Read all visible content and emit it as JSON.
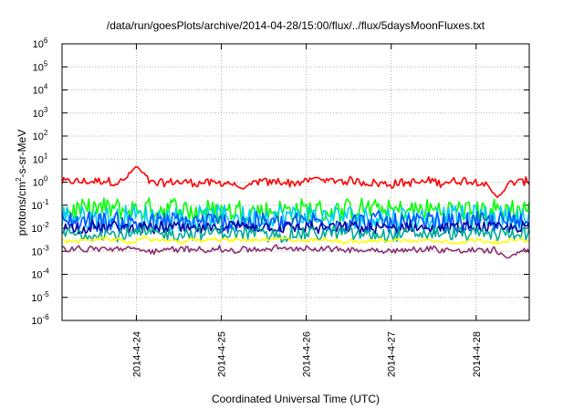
{
  "chart_data": {
    "type": "line",
    "title": "/data/run/goesPlots/archive/2014-04-28/15:00/flux/../flux/5daysMoonFluxes.txt",
    "xlabel": "Coordinated Universal Time (UTC)",
    "ylabel": {
      "base": "protons/cm",
      "exp": "2",
      "rest": "-s-sr-MeV"
    },
    "yscale": "log",
    "ylim": [
      1e-06,
      1000000.0
    ],
    "y_ticks": [
      {
        "value": 1e-06,
        "base": "10",
        "exp": "-6"
      },
      {
        "value": 1e-05,
        "base": "10",
        "exp": "-5"
      },
      {
        "value": 0.0001,
        "base": "10",
        "exp": "-4"
      },
      {
        "value": 0.001,
        "base": "10",
        "exp": "-3"
      },
      {
        "value": 0.01,
        "base": "10",
        "exp": "-2"
      },
      {
        "value": 0.1,
        "base": "10",
        "exp": "-1"
      },
      {
        "value": 1,
        "base": "10",
        "exp": "0"
      },
      {
        "value": 10.0,
        "base": "10",
        "exp": "1"
      },
      {
        "value": 100.0,
        "base": "10",
        "exp": "2"
      },
      {
        "value": 1000.0,
        "base": "10",
        "exp": "3"
      },
      {
        "value": 10000.0,
        "base": "10",
        "exp": "4"
      },
      {
        "value": 100000.0,
        "base": "10",
        "exp": "5"
      },
      {
        "value": 1000000.0,
        "base": "10",
        "exp": "6"
      }
    ],
    "xlim": [
      "2014-04-23T03:00",
      "2014-04-28T15:00"
    ],
    "x_ticks": [
      {
        "value": "2014-04-24T00:00",
        "label": "2014-4-24"
      },
      {
        "value": "2014-04-25T00:00",
        "label": "2014-4-25"
      },
      {
        "value": "2014-04-26T00:00",
        "label": "2014-4-26"
      },
      {
        "value": "2014-04-27T00:00",
        "label": "2014-4-27"
      },
      {
        "value": "2014-04-28T00:00",
        "label": "2014-4-28"
      }
    ],
    "grid": true,
    "legend": "none",
    "series": [
      {
        "color": "#ff0000",
        "base": 1.0,
        "jitter": 0.35,
        "spikes": [
          {
            "x": "2014-04-24T00:00",
            "y": 5.0
          },
          {
            "x": "2014-04-25T06:00",
            "y": 0.5
          },
          {
            "x": "2014-04-26T03:00",
            "y": 1.6
          },
          {
            "x": "2014-04-28T06:00",
            "y": 0.22
          }
        ]
      },
      {
        "color": "#00ff00",
        "base": 0.06,
        "jitter": 1.0,
        "spikes": []
      },
      {
        "color": "#00ccff",
        "base": 0.03,
        "jitter": 1.0,
        "spikes": []
      },
      {
        "color": "#0055ff",
        "base": 0.018,
        "jitter": 0.9,
        "spikes": []
      },
      {
        "color": "#0000a0",
        "base": 0.01,
        "jitter": 0.5,
        "spikes": []
      },
      {
        "color": "#00aa99",
        "base": 0.006,
        "jitter": 0.6,
        "spikes": []
      },
      {
        "color": "#ffff00",
        "base": 0.003,
        "jitter": 0.15,
        "spikes": []
      },
      {
        "color": "#8b3070",
        "base": 0.0012,
        "jitter": 0.25,
        "spikes": [
          {
            "x": "2014-04-28T09:00",
            "y": 0.0005
          }
        ]
      }
    ]
  }
}
